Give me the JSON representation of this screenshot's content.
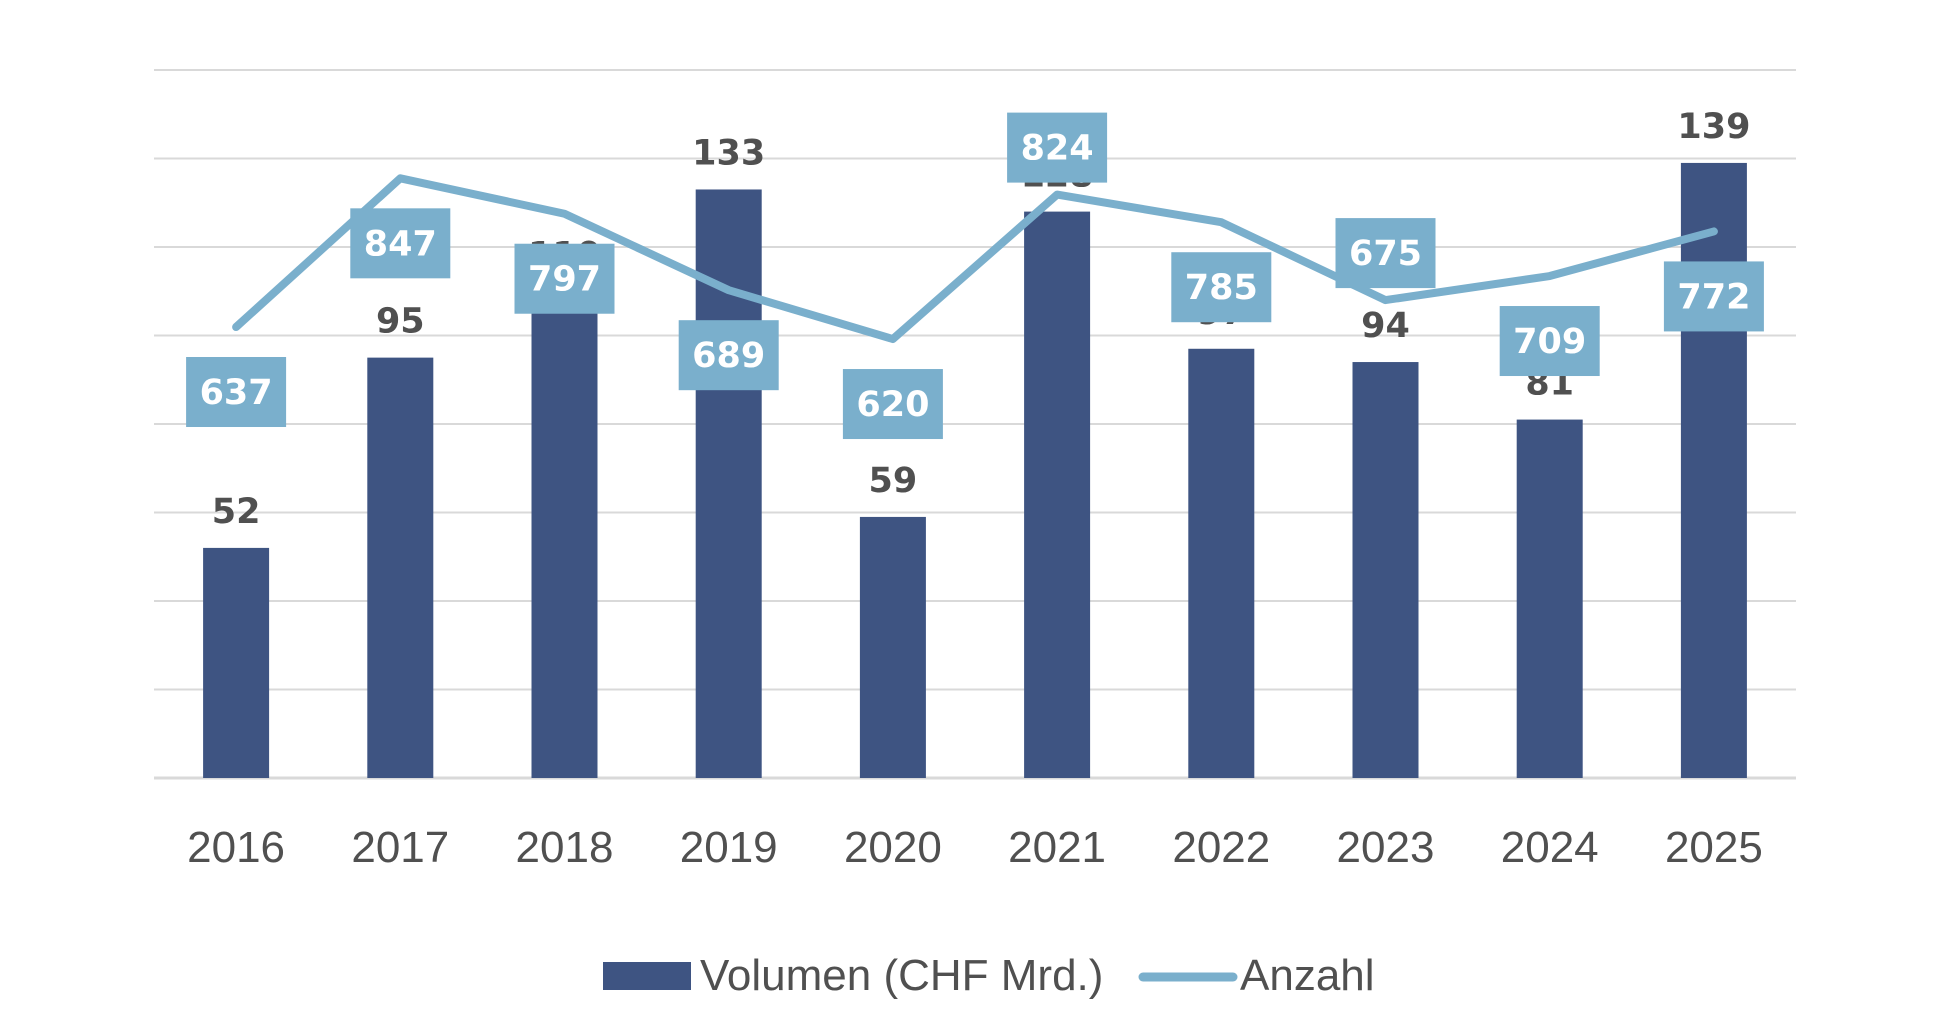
{
  "chart_data": {
    "type": "bar",
    "categories": [
      "2016",
      "2017",
      "2018",
      "2019",
      "2020",
      "2021",
      "2022",
      "2023",
      "2024",
      "2025"
    ],
    "series": [
      {
        "name": "Volumen (CHF Mrd.)",
        "kind": "bar",
        "axis": "primary",
        "color": "#3E5482",
        "values": [
          52,
          95,
          110,
          133,
          59,
          128,
          97,
          94,
          81,
          139
        ]
      },
      {
        "name": "Anzahl",
        "kind": "line",
        "axis": "secondary",
        "color": "#7AAFCC",
        "values": [
          637,
          847,
          797,
          689,
          620,
          824,
          785,
          675,
          709,
          772
        ]
      }
    ],
    "primary_ylim": [
      0,
      160
    ],
    "secondary_ylim": [
      0,
      1000
    ],
    "gridlines": 8,
    "title": "",
    "xlabel": "",
    "ylabel": "",
    "legend": "bottom-center",
    "colors": {
      "grid": "#D9D9D9",
      "text": "#505050",
      "label_box": "#7AAFCC",
      "label_text": "#ffffff"
    }
  }
}
